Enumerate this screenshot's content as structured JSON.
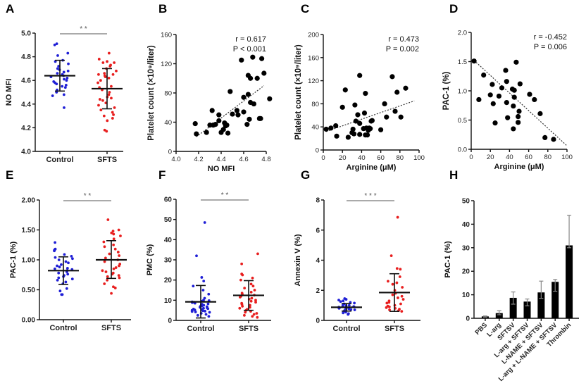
{
  "figure": {
    "panels": [
      "A",
      "B",
      "C",
      "D",
      "E",
      "F",
      "G",
      "H"
    ]
  },
  "chart_data": [
    {
      "id": "A",
      "type": "scatter",
      "subtype": "dot-plot-mean-sd",
      "title": "",
      "panel_label": "A",
      "xlabel": "",
      "ylabel": "NO MFI",
      "categories": [
        "Control",
        "SFTS"
      ],
      "ylim": [
        4.0,
        5.0
      ],
      "yticks": [
        "4.0",
        "4.2",
        "4.4",
        "4.6",
        "4.8",
        "5.0"
      ],
      "ytick_values": [
        4.0,
        4.2,
        4.4,
        4.6,
        4.8,
        5.0
      ],
      "significance": "* *",
      "series": [
        {
          "name": "Control",
          "color": "#1f1fd6",
          "mean": 4.64,
          "sd_low": 4.51,
          "sd_high": 4.77,
          "values": [
            4.91,
            4.9,
            4.83,
            4.81,
            4.77,
            4.76,
            4.74,
            4.72,
            4.7,
            4.69,
            4.68,
            4.67,
            4.66,
            4.65,
            4.64,
            4.63,
            4.62,
            4.61,
            4.6,
            4.59,
            4.58,
            4.57,
            4.56,
            4.55,
            4.54,
            4.52,
            4.5,
            4.48,
            4.47,
            4.37
          ]
        },
        {
          "name": "SFTS",
          "color": "#e81e1e",
          "mean": 4.53,
          "sd_low": 4.36,
          "sd_high": 4.7,
          "values": [
            4.83,
            4.78,
            4.76,
            4.75,
            4.75,
            4.73,
            4.72,
            4.7,
            4.68,
            4.66,
            4.65,
            4.65,
            4.64,
            4.63,
            4.62,
            4.6,
            4.58,
            4.55,
            4.54,
            4.52,
            4.5,
            4.48,
            4.46,
            4.45,
            4.44,
            4.43,
            4.41,
            4.39,
            4.37,
            4.35,
            4.33,
            4.31,
            4.3,
            4.28,
            4.26,
            4.18,
            4.17
          ]
        }
      ]
    },
    {
      "id": "B",
      "type": "scatter",
      "title": "",
      "panel_label": "B",
      "xlabel": "NO MFI",
      "ylabel": "Platelet count (×10⁹/liter)",
      "xlim": [
        4.0,
        4.8
      ],
      "ylim": [
        0,
        160
      ],
      "xticks": [
        "4.0",
        "4.2",
        "4.4",
        "4.6",
        "4.8"
      ],
      "xtick_values": [
        4.0,
        4.2,
        4.4,
        4.6,
        4.8
      ],
      "yticks": [
        "0",
        "40",
        "80",
        "120",
        "160"
      ],
      "ytick_values": [
        0,
        40,
        80,
        120,
        160
      ],
      "annotation": {
        "r": "r = 0.617",
        "p": "P < 0.001"
      },
      "trendline": {
        "x": [
          4.18,
          4.78
        ],
        "y": [
          20,
          90
        ]
      },
      "points": [
        [
          4.17,
          38
        ],
        [
          4.18,
          24
        ],
        [
          4.27,
          26
        ],
        [
          4.3,
          36
        ],
        [
          4.32,
          56
        ],
        [
          4.33,
          36
        ],
        [
          4.35,
          37
        ],
        [
          4.38,
          50
        ],
        [
          4.38,
          42
        ],
        [
          4.4,
          26
        ],
        [
          4.42,
          30
        ],
        [
          4.43,
          39
        ],
        [
          4.44,
          35
        ],
        [
          4.45,
          36
        ],
        [
          4.46,
          25
        ],
        [
          4.48,
          82
        ],
        [
          4.5,
          51
        ],
        [
          4.54,
          56
        ],
        [
          4.55,
          50
        ],
        [
          4.58,
          125
        ],
        [
          4.6,
          74
        ],
        [
          4.6,
          54
        ],
        [
          4.63,
          37
        ],
        [
          4.64,
          78
        ],
        [
          4.64,
          104
        ],
        [
          4.65,
          44
        ],
        [
          4.66,
          100
        ],
        [
          4.66,
          67
        ],
        [
          4.68,
          129
        ],
        [
          4.69,
          65
        ],
        [
          4.72,
          100
        ],
        [
          4.74,
          45
        ],
        [
          4.75,
          45
        ],
        [
          4.76,
          127
        ],
        [
          4.78,
          107
        ],
        [
          4.83,
          72
        ]
      ]
    },
    {
      "id": "C",
      "type": "scatter",
      "title": "",
      "panel_label": "C",
      "xlabel": "Arginine (μM)",
      "ylabel": "Platelet count (×10⁹/liter)",
      "xlim": [
        0,
        100
      ],
      "ylim": [
        0,
        200
      ],
      "xticks": [
        "0",
        "20",
        "40",
        "60",
        "80",
        "100"
      ],
      "xtick_values": [
        0,
        20,
        40,
        60,
        80,
        100
      ],
      "yticks": [
        "0",
        "40",
        "80",
        "120",
        "160",
        "200"
      ],
      "ytick_values": [
        0,
        40,
        80,
        120,
        160,
        200
      ],
      "annotation": {
        "r": "r = 0.473",
        "p": "P = 0.002"
      },
      "trendline": {
        "x": [
          3,
          95
        ],
        "y": [
          32,
          85
        ]
      },
      "points": [
        [
          3,
          36
        ],
        [
          8,
          38
        ],
        [
          13,
          42
        ],
        [
          14,
          24
        ],
        [
          20,
          74
        ],
        [
          23,
          104
        ],
        [
          26,
          22
        ],
        [
          30,
          30
        ],
        [
          31,
          36
        ],
        [
          32,
          28
        ],
        [
          33,
          78
        ],
        [
          34,
          50
        ],
        [
          36,
          61
        ],
        [
          38,
          129
        ],
        [
          38,
          46
        ],
        [
          38,
          27
        ],
        [
          42,
          37
        ],
        [
          43,
          64
        ],
        [
          44,
          98
        ],
        [
          44,
          26
        ],
        [
          45,
          38
        ],
        [
          46,
          26
        ],
        [
          47,
          34
        ],
        [
          48,
          38
        ],
        [
          49,
          37
        ],
        [
          50,
          50
        ],
        [
          51,
          51
        ],
        [
          60,
          35
        ],
        [
          64,
          80
        ],
        [
          66,
          57
        ],
        [
          72,
          127
        ],
        [
          75,
          67
        ],
        [
          77,
          100
        ],
        [
          81,
          57
        ],
        [
          86,
          107
        ]
      ]
    },
    {
      "id": "D",
      "type": "scatter",
      "title": "",
      "panel_label": "D",
      "xlabel": "Arginine (μM)",
      "ylabel": "PAC-1 (%)",
      "xlim": [
        0,
        100
      ],
      "ylim": [
        0.0,
        2.0
      ],
      "xticks": [
        "0",
        "20",
        "40",
        "60",
        "80",
        "100"
      ],
      "xtick_values": [
        0,
        20,
        40,
        60,
        80,
        100
      ],
      "yticks": [
        "0.0",
        "0.5",
        "1.0",
        "1.5",
        "2.0"
      ],
      "ytick_values": [
        0.0,
        0.5,
        1.0,
        1.5,
        2.0
      ],
      "annotation": {
        "r": "r = -0.452",
        "p": "P = 0.006"
      },
      "trendline": {
        "x": [
          3,
          100
        ],
        "y": [
          1.52,
          0.06
        ]
      },
      "points": [
        [
          3,
          1.51
        ],
        [
          8,
          0.85
        ],
        [
          13,
          1.27
        ],
        [
          20,
          0.93
        ],
        [
          22,
          1.11
        ],
        [
          23,
          0.78
        ],
        [
          25,
          0.45
        ],
        [
          29,
          0.91
        ],
        [
          32,
          1.05
        ],
        [
          36,
          1.35
        ],
        [
          37,
          1.16
        ],
        [
          37,
          0.8
        ],
        [
          38,
          0.54
        ],
        [
          43,
          1.03
        ],
        [
          44,
          0.35
        ],
        [
          44,
          0.74
        ],
        [
          45,
          1.01
        ],
        [
          45,
          0.89
        ],
        [
          47,
          1.49
        ],
        [
          49,
          0.56
        ],
        [
          49,
          0.46
        ],
        [
          50,
          0.65
        ],
        [
          51,
          1.12
        ],
        [
          61,
          0.94
        ],
        [
          66,
          0.85
        ],
        [
          72,
          0.61
        ],
        [
          77,
          0.2
        ],
        [
          86,
          0.17
        ]
      ]
    },
    {
      "id": "E",
      "type": "scatter",
      "subtype": "dot-plot-mean-sd",
      "title": "",
      "panel_label": "E",
      "xlabel": "",
      "ylabel": "PAC-1 (%)",
      "categories": [
        "Control",
        "SFTS"
      ],
      "ylim": [
        0.0,
        2.0
      ],
      "yticks": [
        "0.00",
        "0.50",
        "1.00",
        "1.50",
        "2.00"
      ],
      "ytick_values": [
        0.0,
        0.5,
        1.0,
        1.5,
        2.0
      ],
      "significance": "* *",
      "series": [
        {
          "name": "Control",
          "color": "#1f1fd6",
          "mean": 0.82,
          "sd_low": 0.59,
          "sd_high": 1.05,
          "values": [
            1.29,
            1.18,
            1.17,
            1.16,
            1.15,
            1.09,
            1.06,
            1.04,
            1.02,
            1.0,
            0.97,
            0.95,
            0.92,
            0.9,
            0.88,
            0.86,
            0.85,
            0.84,
            0.82,
            0.8,
            0.78,
            0.76,
            0.74,
            0.72,
            0.7,
            0.68,
            0.66,
            0.63,
            0.6,
            0.52,
            0.48,
            0.42,
            0.42
          ]
        },
        {
          "name": "SFTS",
          "color": "#e81e1e",
          "mean": 1.0,
          "sd_low": 0.69,
          "sd_high": 1.32,
          "values": [
            1.67,
            1.5,
            1.48,
            1.45,
            1.43,
            1.4,
            1.35,
            1.3,
            1.25,
            1.22,
            1.18,
            1.13,
            1.1,
            1.07,
            1.03,
            1.0,
            0.97,
            0.93,
            0.9,
            0.87,
            0.85,
            0.82,
            0.8,
            0.78,
            0.76,
            0.74,
            0.72,
            0.7,
            0.66,
            0.6,
            0.55,
            0.53,
            0.44
          ]
        }
      ]
    },
    {
      "id": "F",
      "type": "scatter",
      "subtype": "dot-plot-mean-sd",
      "title": "",
      "panel_label": "F",
      "xlabel": "",
      "ylabel": "PMC (%)",
      "categories": [
        "Control",
        "SFTS"
      ],
      "ylim": [
        0,
        60
      ],
      "yticks": [
        "0",
        "10",
        "20",
        "30",
        "40",
        "50",
        "60"
      ],
      "ytick_values": [
        0,
        10,
        20,
        30,
        40,
        50,
        60
      ],
      "significance": "* *",
      "series": [
        {
          "name": "Control",
          "color": "#1f1fd6",
          "mean": 9.2,
          "sd_low": 1.2,
          "sd_high": 17.3,
          "values": [
            48.5,
            32.0,
            21.3,
            19.5,
            17.0,
            15.0,
            13.0,
            11.0,
            10.0,
            9.8,
            9.5,
            9.2,
            9.0,
            8.8,
            8.5,
            8.2,
            8.0,
            7.8,
            7.5,
            7.2,
            7.0,
            6.8,
            6.6,
            6.4,
            6.2,
            6.0,
            5.8,
            5.6,
            5.4,
            5.2,
            5.0,
            4.8,
            4.6,
            4.4,
            4.2,
            4.0,
            3.5,
            3.0,
            2.5,
            2.0
          ]
        },
        {
          "name": "SFTS",
          "color": "#e81e1e",
          "mean": 12.4,
          "sd_low": 5.0,
          "sd_high": 19.7,
          "values": [
            33.0,
            28.0,
            23.0,
            22.5,
            21.0,
            20.0,
            18.0,
            17.0,
            16.0,
            15.0,
            14.0,
            13.5,
            13.0,
            12.5,
            12.0,
            11.5,
            11.0,
            10.5,
            10.0,
            9.5,
            9.0,
            8.5,
            8.0,
            7.5,
            7.0,
            6.5,
            6.0,
            5.5,
            5.0,
            4.5,
            4.0,
            3.5,
            3.0,
            2.5,
            2.0,
            1.5
          ]
        }
      ]
    },
    {
      "id": "G",
      "type": "scatter",
      "subtype": "dot-plot-mean-sd",
      "title": "",
      "panel_label": "G",
      "xlabel": "",
      "ylabel": "Annexin V (%)",
      "categories": [
        "Control",
        "SFTS"
      ],
      "ylim": [
        0,
        8
      ],
      "yticks": [
        "0",
        "2",
        "4",
        "6",
        "8"
      ],
      "ytick_values": [
        0,
        2,
        4,
        6,
        8
      ],
      "significance": "* * *",
      "series": [
        {
          "name": "Control",
          "color": "#1f1fd6",
          "mean": 0.87,
          "sd_low": 0.62,
          "sd_high": 1.12,
          "values": [
            1.45,
            1.4,
            1.35,
            1.3,
            1.25,
            1.2,
            1.15,
            1.1,
            1.05,
            1.0,
            0.98,
            0.95,
            0.92,
            0.9,
            0.88,
            0.85,
            0.82,
            0.8,
            0.78,
            0.75,
            0.72,
            0.7,
            0.65,
            0.6,
            0.55,
            0.5,
            0.45,
            0.4
          ]
        },
        {
          "name": "SFTS",
          "color": "#e81e1e",
          "mean": 1.85,
          "sd_low": 0.6,
          "sd_high": 3.1,
          "values": [
            6.85,
            4.3,
            3.45,
            3.4,
            2.9,
            2.6,
            2.5,
            2.4,
            2.2,
            2.0,
            1.8,
            1.7,
            1.6,
            1.5,
            1.4,
            1.3,
            1.2,
            1.15,
            1.1,
            1.0,
            0.95,
            0.9,
            0.85,
            0.8,
            0.75,
            0.7,
            0.65,
            0.6
          ]
        }
      ]
    },
    {
      "id": "H",
      "type": "bar",
      "title": "",
      "panel_label": "H",
      "xlabel": "",
      "ylabel": "PAC-1 (%)",
      "categories": [
        "PBS",
        "L-arg",
        "SFTSV",
        "L-arg + SFTSV",
        "L-NAME + SFTSV",
        "L-arg + L-NAME + SFTSV",
        "Thrombin"
      ],
      "values": [
        0.8,
        2.2,
        8.7,
        7.1,
        11.0,
        15.5,
        31.0
      ],
      "error_high": [
        1.0,
        3.2,
        11.2,
        8.2,
        15.8,
        16.5,
        43.8
      ],
      "error_low": [
        0.5,
        1.5,
        6.0,
        5.3,
        8.5,
        11.5,
        30.0
      ],
      "ylim": [
        0,
        50
      ],
      "yticks": [
        "0",
        "10",
        "20",
        "30",
        "40",
        "50"
      ],
      "ytick_values": [
        0,
        10,
        20,
        30,
        40,
        50
      ],
      "bar_color": "#000000"
    }
  ]
}
